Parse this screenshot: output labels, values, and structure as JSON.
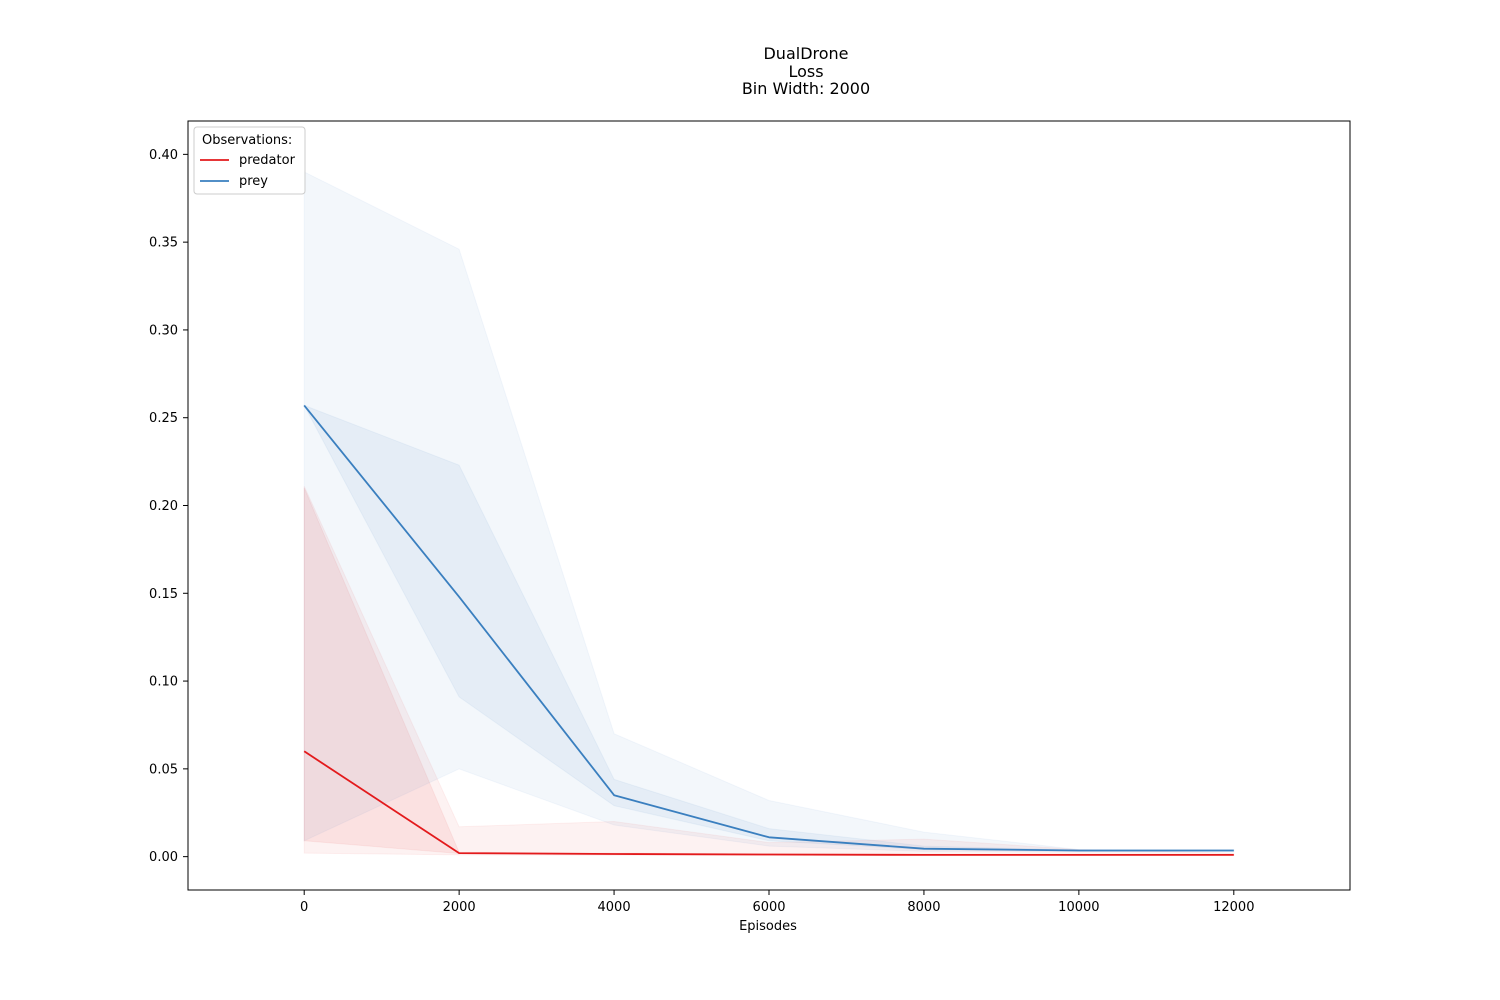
{
  "chart_data": {
    "type": "line",
    "title_lines": [
      "DualDrone",
      "Loss",
      "Bin Width: 2000"
    ],
    "xlabel": "Episodes",
    "ylabel": "",
    "xlim": [
      -1500,
      13500
    ],
    "ylim": [
      -0.019,
      0.419
    ],
    "xticks": [
      0,
      2000,
      4000,
      6000,
      8000,
      10000,
      12000
    ],
    "xtick_labels": [
      "0",
      "2000",
      "4000",
      "6000",
      "8000",
      "10000",
      "12000"
    ],
    "yticks": [
      0.0,
      0.05,
      0.1,
      0.15,
      0.2,
      0.25,
      0.3,
      0.35,
      0.4
    ],
    "ytick_labels": [
      "0.00",
      "0.05",
      "0.10",
      "0.15",
      "0.20",
      "0.25",
      "0.30",
      "0.35",
      "0.40"
    ],
    "grid": false,
    "legend": {
      "title": "Observations:",
      "position": "top-left"
    },
    "x": [
      0,
      2000,
      4000,
      6000,
      8000,
      10000,
      12000
    ],
    "series": [
      {
        "name": "predator",
        "color": "#e31a1c",
        "values": [
          0.06,
          0.002,
          0.0015,
          0.0012,
          0.001,
          0.001,
          0.001
        ],
        "band_outer": {
          "lower": [
            0.002,
            0.001,
            0.0008,
            0.0007,
            0.0006,
            0.0006,
            0.0006
          ],
          "upper": [
            0.211,
            0.017,
            0.02,
            0.008,
            0.01,
            0.004,
            0.002
          ]
        },
        "band_inner": {
          "lower": [
            0.009,
            0.0018,
            0.0012,
            0.001,
            0.0009,
            0.0009,
            0.0009
          ],
          "upper": [
            0.21,
            0.0025,
            0.002,
            0.0015,
            0.0013,
            0.0012,
            0.0012
          ]
        }
      },
      {
        "name": "prey",
        "color": "#3a7fbf",
        "values": [
          0.257,
          0.148,
          0.035,
          0.011,
          0.0045,
          0.0035,
          0.0035
        ],
        "band_outer": {
          "lower": [
            0.009,
            0.05,
            0.018,
            0.006,
            0.003,
            0.003,
            0.003
          ],
          "upper": [
            0.39,
            0.346,
            0.07,
            0.032,
            0.014,
            0.004,
            0.004
          ]
        },
        "band_inner": {
          "lower": [
            0.257,
            0.091,
            0.029,
            0.009,
            0.004,
            0.003,
            0.003
          ],
          "upper": [
            0.257,
            0.223,
            0.044,
            0.016,
            0.006,
            0.0038,
            0.0038
          ]
        }
      }
    ]
  }
}
